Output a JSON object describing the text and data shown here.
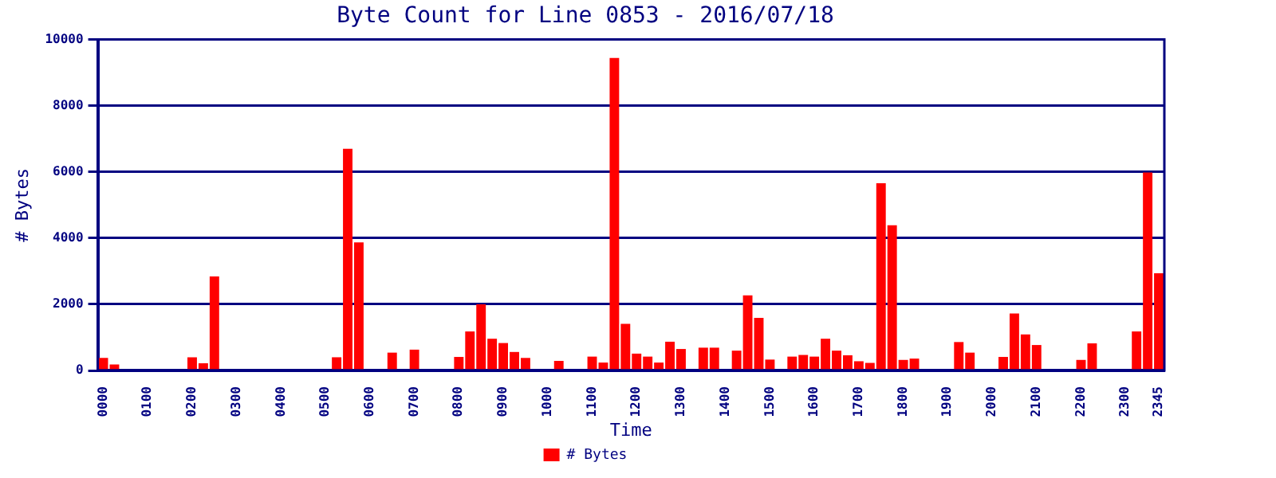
{
  "chart_data": {
    "type": "bar",
    "title": "Byte Count for Line 0853 - 2016/07/18",
    "xlabel": "Time",
    "ylabel": "# Bytes",
    "categories": [
      "0000",
      null,
      null,
      null,
      "0100",
      null,
      null,
      null,
      "0200",
      null,
      null,
      null,
      "0300",
      null,
      null,
      null,
      "0400",
      null,
      null,
      null,
      "0500",
      null,
      null,
      null,
      "0600",
      null,
      null,
      null,
      "0700",
      null,
      null,
      null,
      "0800",
      null,
      null,
      null,
      "0900",
      null,
      null,
      null,
      "1000",
      null,
      null,
      null,
      "1100",
      null,
      null,
      null,
      "1200",
      null,
      null,
      null,
      "1300",
      null,
      null,
      null,
      "1400",
      null,
      null,
      null,
      "1500",
      null,
      null,
      null,
      "1600",
      null,
      null,
      null,
      "1700",
      null,
      null,
      null,
      "1800",
      null,
      null,
      null,
      "1900",
      null,
      null,
      null,
      "2000",
      null,
      null,
      null,
      "2100",
      null,
      null,
      null,
      "2200",
      null,
      null,
      null,
      "2300",
      null,
      null,
      "2345"
    ],
    "series": [
      {
        "name": "# Bytes",
        "color": "#ff0000",
        "values": [
          380,
          180,
          0,
          0,
          0,
          0,
          0,
          0,
          400,
          220,
          2840,
          0,
          0,
          0,
          0,
          0,
          0,
          0,
          0,
          0,
          0,
          400,
          6700,
          3870,
          0,
          0,
          540,
          0,
          630,
          0,
          0,
          0,
          410,
          1180,
          2000,
          960,
          830,
          560,
          380,
          0,
          0,
          290,
          0,
          0,
          420,
          240,
          9440,
          1410,
          510,
          420,
          240,
          870,
          650,
          0,
          690,
          690,
          0,
          600,
          2270,
          1590,
          330,
          0,
          420,
          470,
          420,
          960,
          600,
          460,
          280,
          230,
          5660,
          4390,
          320,
          360,
          0,
          0,
          0,
          860,
          540,
          0,
          0,
          410,
          1720,
          1090,
          770,
          0,
          0,
          0,
          320,
          820,
          0,
          0,
          0,
          1180,
          5980,
          2940
        ]
      }
    ],
    "ylim": [
      0,
      10000
    ],
    "yticks": [
      0,
      2000,
      4000,
      6000,
      8000,
      10000
    ],
    "grid": "y",
    "legend": "bottom"
  }
}
